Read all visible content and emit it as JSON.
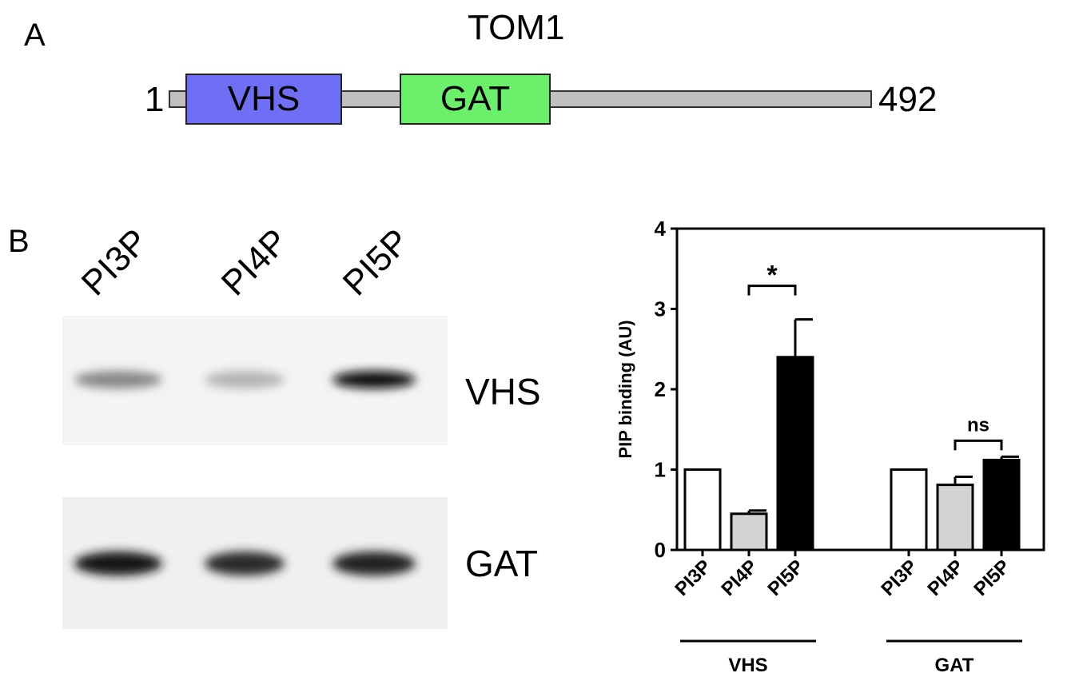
{
  "panel_a": {
    "letter": "A",
    "protein_name": "TOM1",
    "start_residue": "1",
    "end_residue": "492",
    "domains": [
      {
        "name": "VHS",
        "color": "#6f6ff5"
      },
      {
        "name": "GAT",
        "color": "#6af06a"
      }
    ],
    "backbone_color": "#c0c0c0"
  },
  "panel_b": {
    "letter": "B",
    "lanes": [
      "PI3P",
      "PI4P",
      "PI5P"
    ],
    "blot_rows": [
      "VHS",
      "GAT"
    ],
    "band_intensity": {
      "VHS": [
        0.45,
        0.25,
        1.0
      ],
      "GAT": [
        0.95,
        0.85,
        0.9
      ]
    }
  },
  "chart_data": {
    "type": "bar",
    "ylabel": "PIP binding (AU)",
    "ylim": [
      0,
      4
    ],
    "yticks": [
      "0",
      "1",
      "2",
      "3",
      "4"
    ],
    "groups": [
      {
        "name": "VHS",
        "categories": [
          "PI3P",
          "PI4P",
          "PI5P"
        ],
        "values": [
          1.0,
          0.45,
          2.4
        ],
        "errors": [
          0,
          0.04,
          0.47
        ]
      },
      {
        "name": "GAT",
        "categories": [
          "PI3P",
          "PI4P",
          "PI5P"
        ],
        "values": [
          1.0,
          0.81,
          1.12
        ],
        "errors": [
          0,
          0.1,
          0.04
        ]
      }
    ],
    "bar_colors": [
      "#ffffff",
      "#d3d3d3",
      "#000000"
    ],
    "annotations": [
      {
        "group": "VHS",
        "from": "PI4P",
        "to": "PI5P",
        "text": "*"
      },
      {
        "group": "GAT",
        "from": "PI4P",
        "to": "PI5P",
        "text": "ns"
      }
    ]
  }
}
